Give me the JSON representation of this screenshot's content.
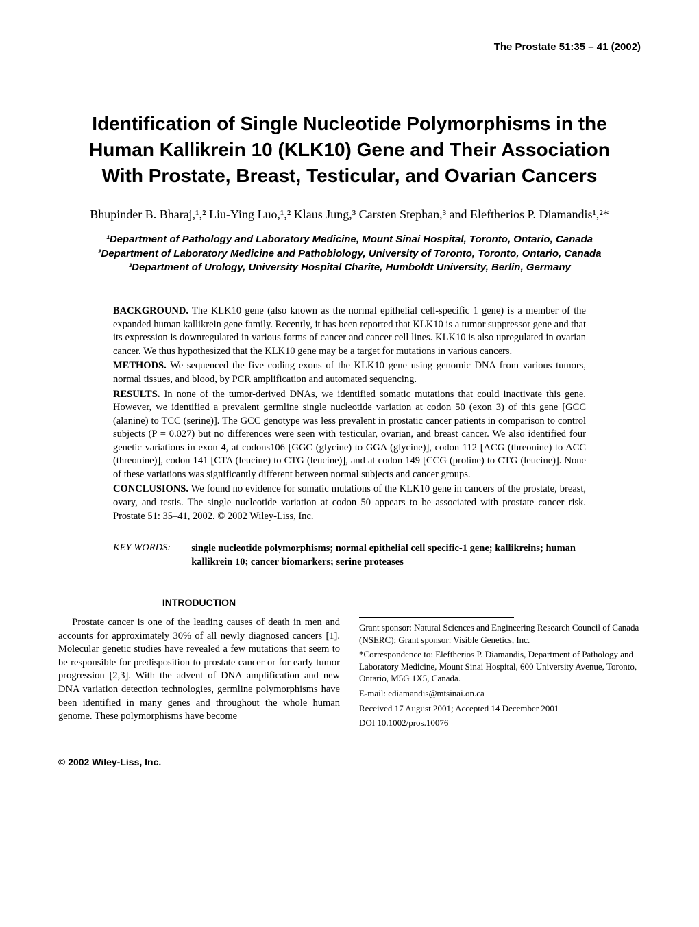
{
  "journal_header": "The Prostate 51:35 – 41 (2002)",
  "title": "Identification of Single Nucleotide Polymorphisms in the Human Kallikrein 10 (KLK10) Gene and Their Association With Prostate, Breast, Testicular, and Ovarian Cancers",
  "authors": "Bhupinder B. Bharaj,¹,² Liu-Ying Luo,¹,² Klaus Jung,³ Carsten Stephan,³ and Eleftherios P. Diamandis¹,²*",
  "affiliations": "¹Department of Pathology and Laboratory Medicine, Mount Sinai Hospital, Toronto, Ontario, Canada\n²Department of Laboratory Medicine and Pathobiology, University of Toronto, Toronto, Ontario, Canada\n³Department of Urology, University Hospital Charite, Humboldt University, Berlin, Germany",
  "abstract": {
    "background": {
      "label": "BACKGROUND.",
      "text": " The KLK10 gene (also known as the normal epithelial cell-specific 1 gene) is a member of the expanded human kallikrein gene family. Recently, it has been reported that KLK10 is a tumor suppressor gene and that its expression is downregulated in various forms of cancer and cancer cell lines. KLK10 is also upregulated in ovarian cancer. We thus hypothesized that the KLK10 gene may be a target for mutations in various cancers."
    },
    "methods": {
      "label": "METHODS.",
      "text": " We sequenced the five coding exons of the KLK10 gene using genomic DNA from various tumors, normal tissues, and blood, by PCR amplification and automated sequencing."
    },
    "results": {
      "label": "RESULTS.",
      "text": " In none of the tumor-derived DNAs, we identified somatic mutations that could inactivate this gene. However, we identified a prevalent germline single nucleotide variation at codon 50 (exon 3) of this gene [GCC (alanine) to TCC (serine)]. The GCC genotype was less prevalent in prostatic cancer patients in comparison to control subjects (P = 0.027) but no differences were seen with testicular, ovarian, and breast cancer. We also identified four genetic variations in exon 4, at codons106 [GGC (glycine) to GGA (glycine)], codon 112 [ACG (threonine) to ACC (threonine)], codon 141 [CTA (leucine) to CTG (leucine)], and at codon 149 [CCG (proline) to CTG (leucine)]. None of these variations was significantly different between normal subjects and cancer groups."
    },
    "conclusions": {
      "label": "CONCLUSIONS.",
      "text": " We found no evidence for somatic mutations of the KLK10 gene in cancers of the prostate, breast, ovary, and testis. The single nucleotide variation at codon 50 appears to be associated with prostate cancer risk. Prostate 51: 35–41, 2002. "
    },
    "copyright": "© 2002 Wiley-Liss, Inc."
  },
  "keywords": {
    "label": "KEY WORDS:",
    "text": "single nucleotide polymorphisms; normal epithelial cell specific-1 gene; kallikreins; human kallikrein 10; cancer biomarkers; serine proteases"
  },
  "introduction": {
    "heading": "INTRODUCTION",
    "para": "Prostate cancer is one of the leading causes of death in men and accounts for approximately 30% of all newly diagnosed cancers [1]. Molecular genetic studies have revealed a few mutations that seem to be responsible for predisposition to prostate cancer or for early tumor progression [2,3]. With the advent of DNA amplification and new DNA variation detection technologies, germline polymorphisms have been identified in many genes and throughout the whole human genome. These polymorphisms have become"
  },
  "footnotes": {
    "grant": "Grant sponsor: Natural Sciences and Engineering Research Council of Canada (NSERC); Grant sponsor: Visible Genetics, Inc.",
    "correspondence": "*Correspondence to: Eleftherios P. Diamandis, Department of Pathology and Laboratory Medicine, Mount Sinai Hospital, 600 University Avenue, Toronto, Ontario, M5G 1X5, Canada.",
    "email": "E-mail: ediamandis@mtsinai.on.ca",
    "received": "Received 17 August 2001; Accepted 14 December 2001",
    "doi": "DOI 10.1002/pros.10076"
  },
  "footer": "© 2002 Wiley-Liss, Inc."
}
